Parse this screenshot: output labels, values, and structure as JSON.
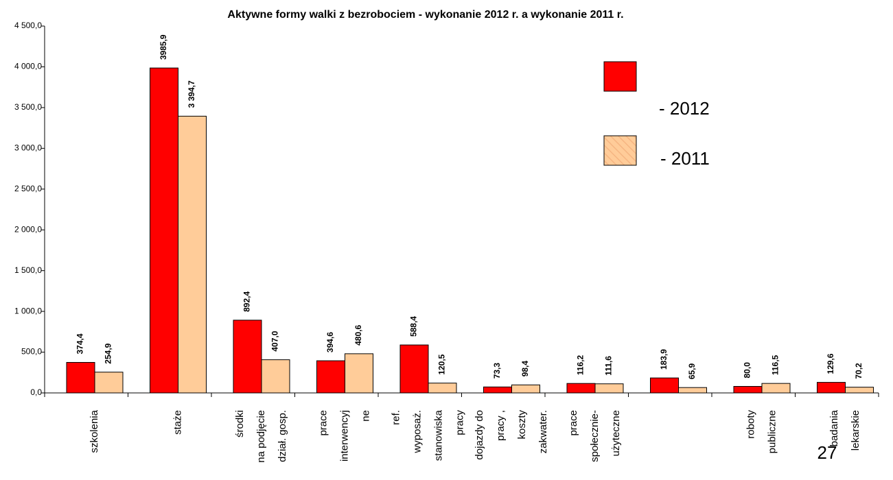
{
  "chart_data": {
    "type": "bar",
    "title": "Aktywne formy walki z bezrobociem - wykonanie 2012 r. a wykonanie 2011 r.",
    "categories": [
      [
        "szkolenia"
      ],
      [
        "staże"
      ],
      [
        "środki",
        "na podjęcie",
        "dział. gosp."
      ],
      [
        "prace",
        "interwencyj",
        "ne"
      ],
      [
        "ref.",
        "wyposaż.",
        "stanowiska",
        "pracy"
      ],
      [
        "dojazdy do",
        "pracy ,",
        "koszty",
        "zakwater."
      ],
      [
        "prace",
        "społecznie-",
        "użyteczne"
      ],
      null,
      [
        "roboty",
        "publiczne"
      ],
      [
        "badania",
        "lekarskie"
      ]
    ],
    "series": [
      {
        "name": "- 2012",
        "color": "#ff0000",
        "values": [
          374.4,
          3985.9,
          892.4,
          394.6,
          588.4,
          73.3,
          116.2,
          183.9,
          80.0,
          129.6
        ],
        "value_labels": [
          "374,4",
          "3985,9",
          "892,4",
          "394,6",
          "588,4",
          "73,3",
          "116,2",
          "183,9",
          "80,0",
          "129,6"
        ]
      },
      {
        "name": "- 2011",
        "color": "#ffcc99",
        "values": [
          254.9,
          3394.7,
          407.0,
          480.6,
          120.5,
          98.4,
          111.6,
          65.9,
          116.5,
          70.2
        ],
        "value_labels": [
          "254,9",
          "3 394,7",
          "407,0",
          "480,6",
          "120,5",
          "98,4",
          "111,6",
          "65,9",
          "116,5",
          "70,2"
        ]
      }
    ],
    "ylim": [
      0,
      4500
    ],
    "yticks": [
      {
        "value": 0,
        "label": "0,0"
      },
      {
        "value": 500,
        "label": "500,0"
      },
      {
        "value": 1000,
        "label": "1 000,0"
      },
      {
        "value": 1500,
        "label": "1 500,0"
      },
      {
        "value": 2000,
        "label": "2 000,0"
      },
      {
        "value": 2500,
        "label": "2 500,0"
      },
      {
        "value": 3000,
        "label": "3 000,0"
      },
      {
        "value": 3500,
        "label": "3 500,0"
      },
      {
        "value": 4000,
        "label": "4 000,0"
      },
      {
        "value": 4500,
        "label": "4 500,0"
      }
    ],
    "grid": false
  },
  "page_number": "27"
}
